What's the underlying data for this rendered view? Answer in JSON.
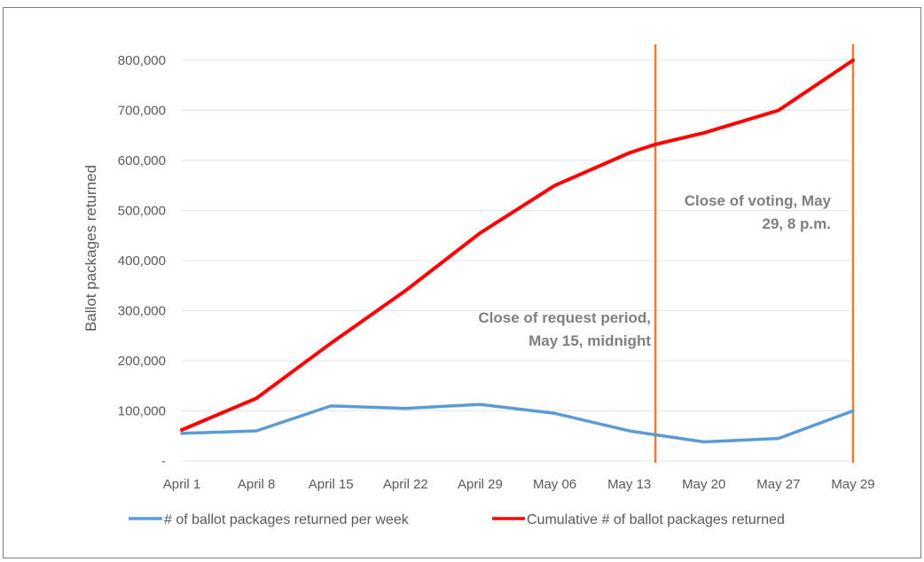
{
  "chart_data": {
    "type": "line",
    "title": "",
    "xlabel": "",
    "ylabel": "Ballot packages returned",
    "categories": [
      "April 1",
      "April 8",
      "April 15",
      "April 22",
      "April 29",
      "May 06",
      "May 13",
      "May 20",
      "May 27",
      "May 29"
    ],
    "ylim": [
      0,
      800000
    ],
    "y_ticks": [
      {
        "value": 0,
        "label": "-"
      },
      {
        "value": 100000,
        "label": "100,000"
      },
      {
        "value": 200000,
        "label": "200,000"
      },
      {
        "value": 300000,
        "label": "300,000"
      },
      {
        "value": 400000,
        "label": "400,000"
      },
      {
        "value": 500000,
        "label": "500,000"
      },
      {
        "value": 600000,
        "label": "600,000"
      },
      {
        "value": 700000,
        "label": "700,000"
      },
      {
        "value": 800000,
        "label": "800,000"
      }
    ],
    "grid": true,
    "legend_position": "bottom",
    "series": [
      {
        "name": "# of ballot packages returned per week",
        "color": "#5b9bd5",
        "points": [
          {
            "x": 0,
            "y": 55000
          },
          {
            "x": 1,
            "y": 60000
          },
          {
            "x": 2,
            "y": 110000
          },
          {
            "x": 3,
            "y": 105000
          },
          {
            "x": 4,
            "y": 113000
          },
          {
            "x": 5,
            "y": 95000
          },
          {
            "x": 6,
            "y": 60000
          },
          {
            "x": 7,
            "y": 38000
          },
          {
            "x": 8,
            "y": 45000
          },
          {
            "x": 9,
            "y": 100000
          }
        ]
      },
      {
        "name": "Cumulative # of ballot packages returned",
        "color": "#ff0000",
        "points": [
          {
            "x": 0,
            "y": 62000
          },
          {
            "x": 1,
            "y": 125000
          },
          {
            "x": 2,
            "y": 235000
          },
          {
            "x": 3,
            "y": 340000
          },
          {
            "x": 4,
            "y": 455000
          },
          {
            "x": 5,
            "y": 550000
          },
          {
            "x": 6,
            "y": 615000
          },
          {
            "x": 6.35,
            "y": 632000
          },
          {
            "x": 7,
            "y": 655000
          },
          {
            "x": 8,
            "y": 700000
          },
          {
            "x": 9,
            "y": 800000
          }
        ]
      }
    ],
    "markers": [
      {
        "x": 6.35,
        "color": "#ed7d31",
        "lines": [
          "Close of request period,",
          "May 15, midnight"
        ]
      },
      {
        "x": 9,
        "color": "#ed7d31",
        "lines": [
          "Close of voting, May",
          "29, 8 p.m."
        ]
      }
    ]
  }
}
